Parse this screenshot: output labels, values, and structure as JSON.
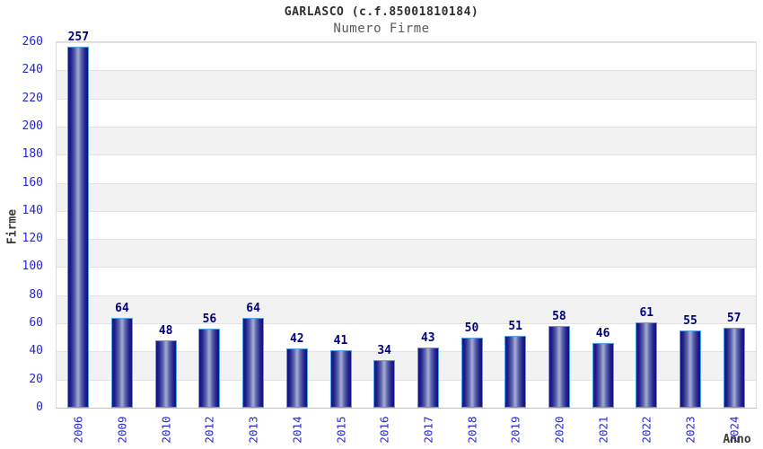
{
  "header": {
    "title": "GARLASCO (c.f.85001810184)",
    "subtitle": "Numero Firme"
  },
  "chart_data": {
    "type": "bar",
    "title": "GARLASCO (c.f.85001810184)",
    "subtitle": "Numero Firme",
    "xlabel": "Anno",
    "ylabel": "Firme",
    "categories": [
      "2006",
      "2009",
      "2010",
      "2012",
      "2013",
      "2014",
      "2015",
      "2016",
      "2017",
      "2018",
      "2019",
      "2020",
      "2021",
      "2022",
      "2023",
      "2024"
    ],
    "values": [
      257,
      64,
      48,
      56,
      64,
      42,
      41,
      34,
      43,
      50,
      51,
      58,
      46,
      61,
      55,
      57
    ],
    "ylim": [
      0,
      260
    ],
    "y_tick_step": 20,
    "legend": "none",
    "grid": "horizontal-bands-alternating",
    "colors": {
      "bar_border": "#55a0e6",
      "bar_edge": "#10107e",
      "bar_inner_dark": "#23238f",
      "bar_mid": "#5d64ad",
      "bar_light": "#a7aed2",
      "value_label": "#000080",
      "tick_label": "#2626d8",
      "band_gray": "#f2f2f2",
      "band_white": "#ffffff",
      "gridline": "#e2e2e2",
      "axis_line": "#c0c0c0"
    }
  }
}
